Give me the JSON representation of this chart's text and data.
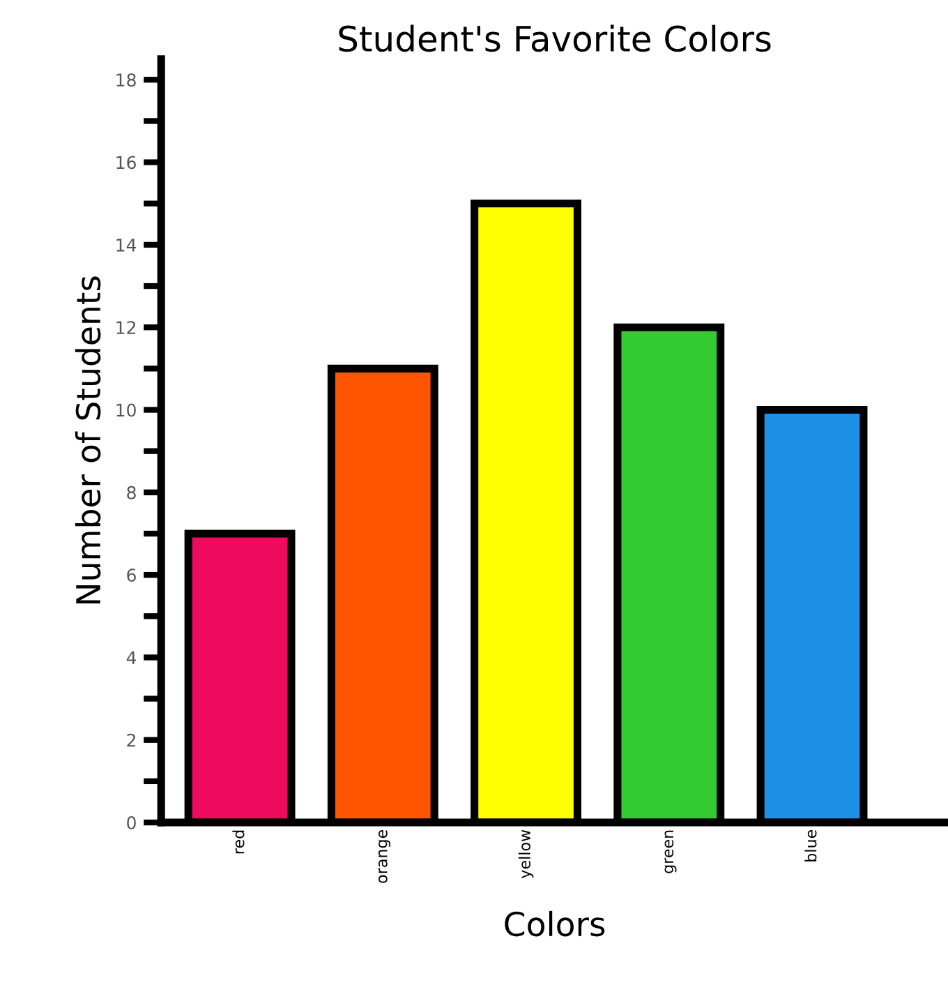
{
  "chart_data": {
    "type": "bar",
    "title": "Student's Favorite Colors",
    "xlabel": "Colors",
    "ylabel": "Number of Students",
    "categories": [
      "red",
      "orange",
      "yellow",
      "green",
      "blue"
    ],
    "values": [
      7,
      11,
      15,
      12,
      10
    ],
    "colors": [
      "#ee0a5c",
      "#ff5500",
      "#ffff00",
      "#33cc33",
      "#1e90e6"
    ],
    "ylim": [
      0,
      18.5
    ],
    "yticks": [
      0,
      {
        "value": 1,
        "label": null
      },
      2,
      {
        "value": 3,
        "label": null
      },
      4,
      {
        "value": 5,
        "label": null
      },
      6,
      {
        "value": 7,
        "label": null
      },
      8,
      {
        "value": 9,
        "label": null
      },
      10,
      {
        "value": 11,
        "label": null
      },
      12,
      {
        "value": 13,
        "label": null
      },
      14,
      {
        "value": 15,
        "label": null
      },
      16,
      {
        "value": 17,
        "label": null
      },
      18
    ],
    "grid": false
  }
}
